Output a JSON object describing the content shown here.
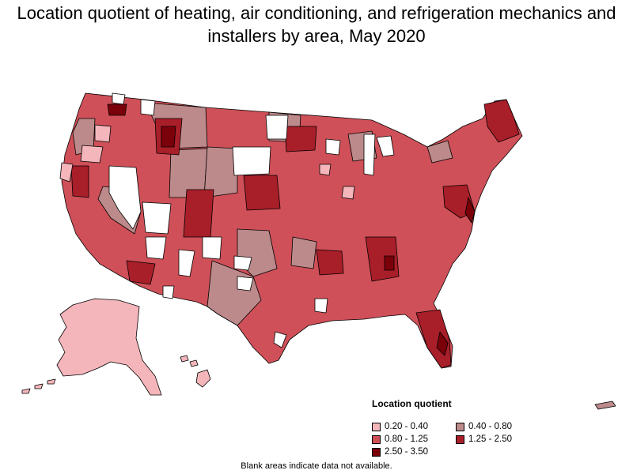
{
  "title": "Location quotient of heating, air conditioning, and refrigeration mechanics and installers by area, May 2020",
  "legend": {
    "title": "Location quotient",
    "items": [
      {
        "label": "0.20 - 0.40",
        "color": "#f4b6bb"
      },
      {
        "label": "0.40 - 0.80",
        "color": "#bc8a8b"
      },
      {
        "label": "0.80 - 1.25",
        "color": "#cf5058"
      },
      {
        "label": "1.25 - 2.50",
        "color": "#a81e29"
      },
      {
        "label": "2.50 - 3.50",
        "color": "#7a0009"
      }
    ]
  },
  "note": "Blank areas indicate data not available.",
  "colors": {
    "q1": "#f4b6bb",
    "q2": "#bc8a8b",
    "q3": "#cf5058",
    "q4": "#a81e29",
    "q5": "#7a0009",
    "blank": "#ffffff"
  }
}
